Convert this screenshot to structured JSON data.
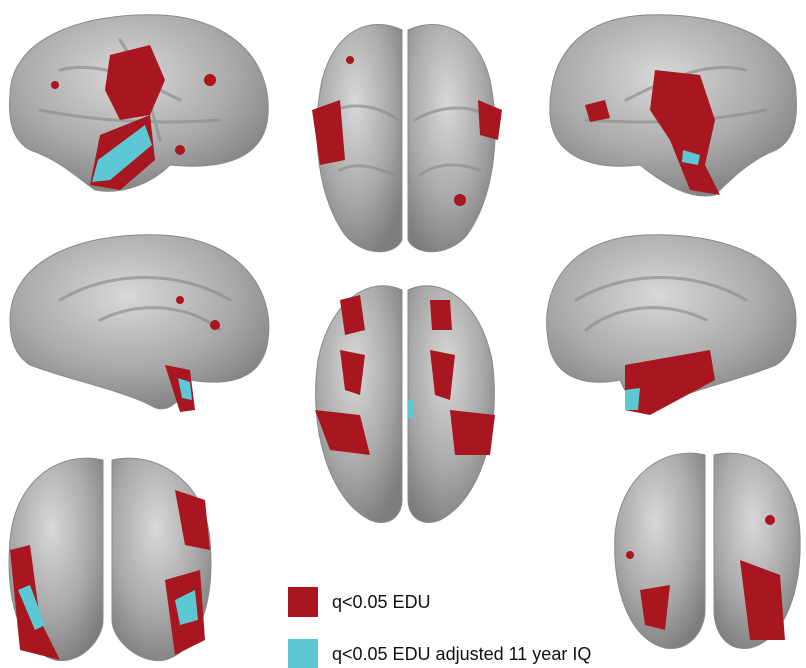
{
  "legend": [
    {
      "label": "q<0.05 EDU",
      "color": "#a8161f"
    },
    {
      "label": "q<0.05 EDU adjusted 11 year IQ",
      "color": "#5bc8d3"
    }
  ]
}
